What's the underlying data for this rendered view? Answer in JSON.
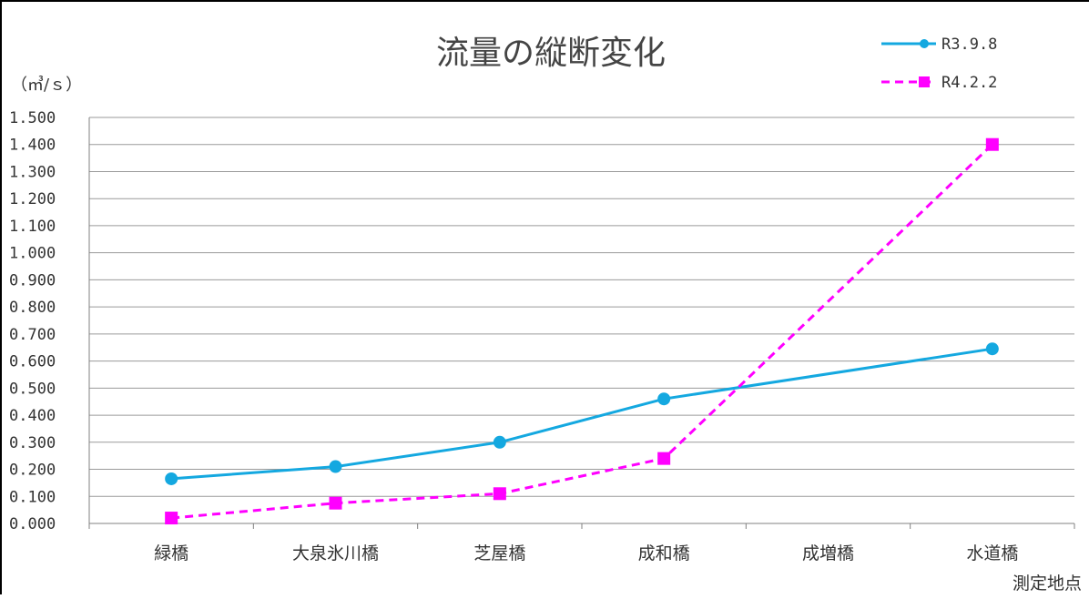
{
  "chart_data": {
    "type": "line",
    "title": "流量の縦断変化",
    "ylabel": "（㎥/ｓ）",
    "xlabel": "測定地点",
    "ylim": [
      0,
      1.5
    ],
    "yticks": [
      "0.000",
      "0.100",
      "0.200",
      "0.300",
      "0.400",
      "0.500",
      "0.600",
      "0.700",
      "0.800",
      "0.900",
      "1.000",
      "1.100",
      "1.200",
      "1.300",
      "1.400",
      "1.500"
    ],
    "categories": [
      "緑橋",
      "大泉氷川橋",
      "芝屋橋",
      "成和橋",
      "成増橋",
      "水道橋"
    ],
    "grid": true,
    "legend_position": "top-right",
    "series": [
      {
        "name": "R3.9.8",
        "color": "#14a8e0",
        "marker": "circle",
        "line_style": "solid",
        "values": [
          0.165,
          0.21,
          0.3,
          0.46,
          null,
          0.645
        ]
      },
      {
        "name": "R4.2.2",
        "color": "#ff00ff",
        "marker": "square",
        "line_style": "dashed",
        "values": [
          0.02,
          0.075,
          0.11,
          0.24,
          null,
          1.4
        ]
      }
    ]
  }
}
